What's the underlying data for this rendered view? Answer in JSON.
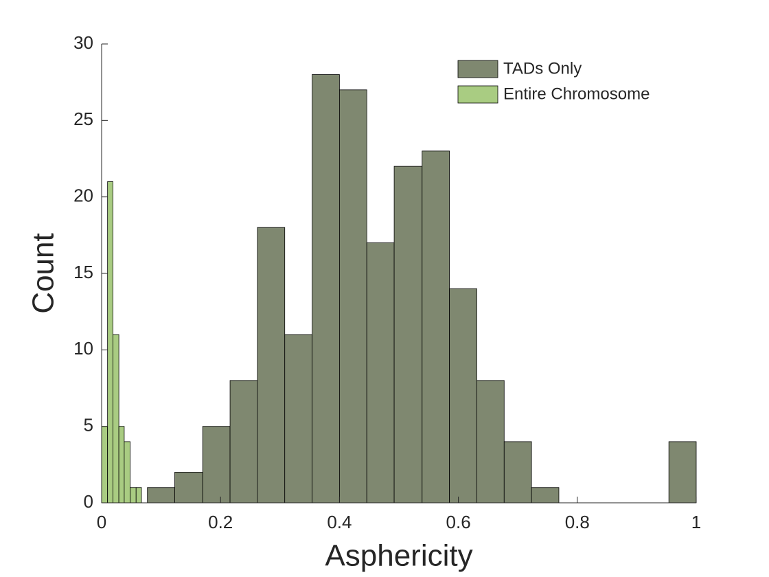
{
  "chart_data": {
    "type": "histogram",
    "xlabel": "Asphericity",
    "ylabel": "Count",
    "xlim": [
      0,
      1
    ],
    "ylim": [
      0,
      30
    ],
    "xticks": [
      0,
      0.2,
      0.4,
      0.6,
      0.8,
      1
    ],
    "yticks": [
      0,
      5,
      10,
      15,
      20,
      25,
      30
    ],
    "legend": "upper right",
    "series": [
      {
        "name": "TADs Only",
        "color": "#7f8870",
        "bins": [
          0.077,
          0.123,
          0.17,
          0.216,
          0.262,
          0.308,
          0.354,
          0.4,
          0.446,
          0.492,
          0.539,
          0.585,
          0.631,
          0.677,
          0.723,
          0.769,
          0.815,
          0.862,
          0.908,
          0.954,
          1.0
        ],
        "values": [
          1,
          2,
          5,
          8,
          18,
          11,
          28,
          27,
          17,
          22,
          23,
          14,
          8,
          4,
          1,
          0,
          0,
          0,
          0,
          4
        ]
      },
      {
        "name": "Entire Chromosome",
        "color": "#a9cc82",
        "bins": [
          0,
          0.01,
          0.019,
          0.029,
          0.038,
          0.048,
          0.058,
          0.067
        ],
        "values": [
          5,
          21,
          11,
          5,
          4,
          1,
          1
        ]
      }
    ]
  }
}
